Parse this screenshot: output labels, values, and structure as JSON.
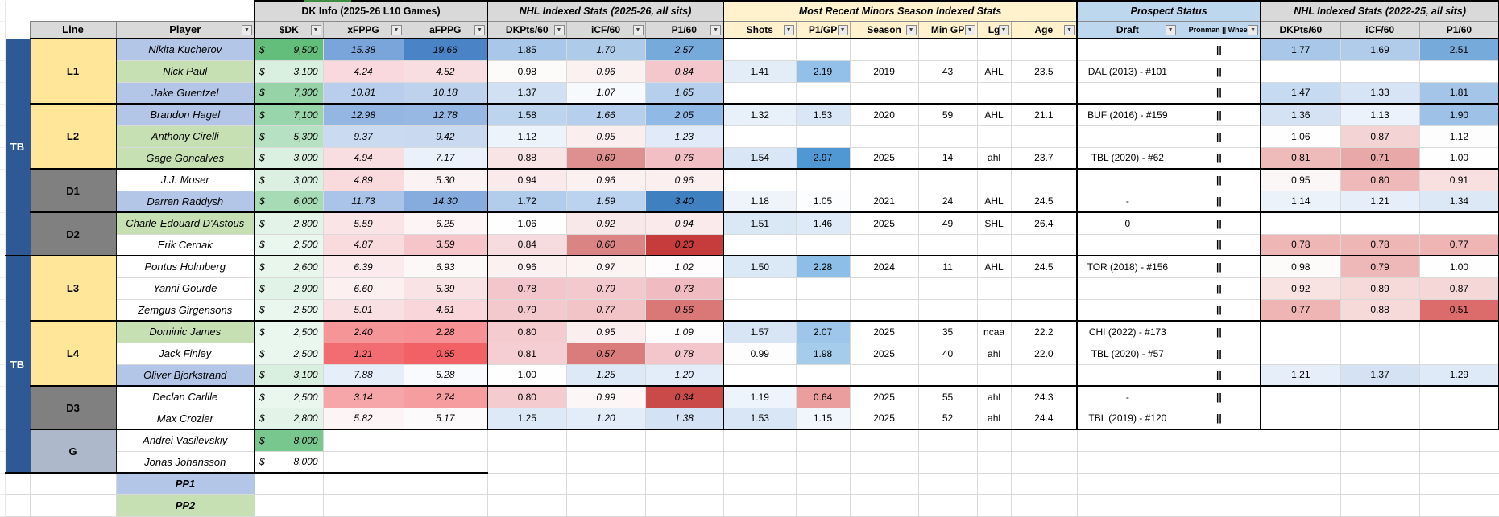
{
  "palette": {
    "band_blue": "#2E5994",
    "line_yellow": "#FFE699",
    "line_gray": "#808080",
    "goalie_slate": "#ADB9CA",
    "player_blue": "#B4C6E7",
    "player_green": "#C6E0B4",
    "header_gray": "#D9D9D9",
    "header_cream": "#FFF2CC",
    "header_blue": "#BDD7EE",
    "dk_green_max": "#63BE7B"
  },
  "header": {
    "line_label": "Line",
    "player_label": "Player",
    "groups": [
      {
        "label": "DK Info (2025-26 L10 Games)",
        "cols": [
          "$DK",
          "xFPPG",
          "aFPPG"
        ]
      },
      {
        "label": "NHL Indexed Stats (2025-26, all sits)",
        "cols": [
          "DKPts/60",
          "iCF/60",
          "P1/60"
        ]
      },
      {
        "label": "Most Recent Minors Season Indexed Stats",
        "cols": [
          "Shots",
          "P1/GP",
          "Season",
          "Min GP",
          "Lg",
          "Age"
        ]
      },
      {
        "label": "Prospect Status",
        "cols": [
          "Draft",
          "Pronman || Wheel"
        ]
      },
      {
        "label": "NHL Indexed Stats (2022-25, all sits)",
        "cols": [
          "DKPts/60",
          "iCF/60",
          "P1/60"
        ]
      }
    ]
  },
  "rows": [
    {
      "band": {
        "label": "TB",
        "span": 10
      },
      "line": {
        "label": "L1",
        "span": 3,
        "bg": "#FFE699"
      },
      "player": "Nikita Kucherov",
      "pbg": "#B4C6E7",
      "dk": {
        "v": "9,500",
        "c": "#63BE7B"
      },
      "vb": "all",
      "stats": [
        {
          "v": "15.38",
          "c": "#79A5DB"
        },
        {
          "v": "19.66",
          "c": "#4A84C6"
        },
        {
          "v": "1.85",
          "c": "#A8C7E9"
        },
        {
          "v": "1.70",
          "c": "#AFCBEA"
        },
        {
          "v": "2.57",
          "c": "#76AADB"
        },
        null,
        null,
        null,
        null,
        null,
        null,
        "",
        "||",
        {
          "v": "1.77",
          "c": "#A9C8E9"
        },
        {
          "v": "1.69",
          "c": "#B0CCEA"
        },
        {
          "v": "2.51",
          "c": "#76AADB"
        }
      ]
    },
    {
      "player": "Nick Paul",
      "pbg": "#C6E0B4",
      "dk": {
        "v": "3,100",
        "c": "#D9EFDF"
      },
      "vb": "all",
      "stats": [
        {
          "v": "4.24",
          "c": "#F9D9DD"
        },
        {
          "v": "4.52",
          "c": "#F9DEE1"
        },
        {
          "v": "0.98",
          "c": "#FDFAFA"
        },
        {
          "v": "0.96",
          "c": "#FBF1F1"
        },
        {
          "v": "0.84",
          "c": "#F3C7CC"
        },
        {
          "v": "1.41",
          "c": "#E2EDF8"
        },
        {
          "v": "2.19",
          "c": "#92C0E8"
        },
        "2019",
        "43",
        "AHL",
        "23.5",
        "DAL (2013) - #101",
        "||",
        null,
        null,
        null
      ]
    },
    {
      "player": "Jake Guentzel",
      "pbg": "#B4C6E7",
      "dk": {
        "v": "7,300",
        "c": "#96D4A8"
      },
      "vb": "all",
      "hb": true,
      "stats": [
        {
          "v": "10.81",
          "c": "#B8CEEC"
        },
        {
          "v": "10.18",
          "c": "#BED2EE"
        },
        {
          "v": "1.37",
          "c": "#D1E1F3"
        },
        {
          "v": "1.07",
          "c": "#F7FAFD"
        },
        {
          "v": "1.65",
          "c": "#B5CFEC"
        },
        null,
        null,
        null,
        null,
        null,
        null,
        "",
        "||",
        {
          "v": "1.47",
          "c": "#C6DAF1"
        },
        {
          "v": "1.33",
          "c": "#D7E4F5"
        },
        {
          "v": "1.81",
          "c": "#A4C5E8"
        }
      ]
    },
    {
      "line": {
        "label": "L2",
        "span": 3,
        "bg": "#FFE699"
      },
      "player": "Brandon Hagel",
      "pbg": "#B4C6E7",
      "dk": {
        "v": "7,100",
        "c": "#99D5AA"
      },
      "vb": "all",
      "stats": [
        {
          "v": "12.98",
          "c": "#94B6E2"
        },
        {
          "v": "12.78",
          "c": "#97B8E3"
        },
        {
          "v": "1.58",
          "c": "#BDD4EF"
        },
        {
          "v": "1.66",
          "c": "#B5CFEC"
        },
        {
          "v": "2.05",
          "c": "#90BAE5"
        },
        {
          "v": "1.32",
          "c": "#E8F0FA"
        },
        {
          "v": "1.53",
          "c": "#D9E6F5"
        },
        "2020",
        "59",
        "AHL",
        "21.1",
        "BUF (2016) - #159",
        "||",
        {
          "v": "1.36",
          "c": "#D4E2F4"
        },
        {
          "v": "1.13",
          "c": "#ECF2FB"
        },
        {
          "v": "1.90",
          "c": "#9EC2E7"
        }
      ]
    },
    {
      "player": "Anthony Cirelli",
      "pbg": "#C6E0B4",
      "dk": {
        "v": "5,300",
        "c": "#B7E1C3"
      },
      "vb": "all",
      "stats": [
        {
          "v": "9.37",
          "c": "#C9DAF1"
        },
        {
          "v": "9.42",
          "c": "#C8D9F0"
        },
        {
          "v": "1.12",
          "c": "#EDF3FB"
        },
        {
          "v": "0.95",
          "c": "#FAEEEE"
        },
        {
          "v": "1.23",
          "c": "#E0EAF8"
        },
        null,
        null,
        null,
        null,
        null,
        null,
        "",
        "||",
        {
          "v": "1.06",
          "c": "#FEFEFE"
        },
        {
          "v": "0.87",
          "c": "#F4D3D5"
        },
        {
          "v": "1.12",
          "c": "#FDFDFE"
        }
      ]
    },
    {
      "player": "Gage Goncalves",
      "pbg": "#C6E0B4",
      "dk": {
        "v": "3,000",
        "c": "#DCF0E2"
      },
      "vb": "all",
      "hb": true,
      "stats": [
        {
          "v": "4.94",
          "c": "#F9DEE1"
        },
        {
          "v": "7.17",
          "c": "#EBF1FA"
        },
        {
          "v": "0.88",
          "c": "#F8E3E5"
        },
        {
          "v": "0.69",
          "c": "#DE9090"
        },
        {
          "v": "0.76",
          "c": "#F1BFC4"
        },
        {
          "v": "1.54",
          "c": "#D8E6F6"
        },
        {
          "v": "2.97",
          "c": "#4F98D3"
        },
        "2025",
        "14",
        "ahl",
        "23.7",
        "TBL (2020) - #62",
        "||",
        {
          "v": "0.81",
          "c": "#EFBABA"
        },
        {
          "v": "0.71",
          "c": "#E9A8A8"
        },
        {
          "v": "1.00",
          "c": "#FEFEFE"
        }
      ]
    },
    {
      "line": {
        "label": "D1",
        "span": 2,
        "bg": "#808080"
      },
      "player": "J.J. Moser",
      "pbg": null,
      "dk": {
        "v": "3,000",
        "c": "#DCF0E2"
      },
      "vb": "all",
      "stats": [
        {
          "v": "4.89",
          "c": "#F9DADD"
        },
        {
          "v": "5.30",
          "c": "#FBF2F3"
        },
        {
          "v": "0.94",
          "c": "#FAEAEB"
        },
        {
          "v": "0.96",
          "c": "#FBF1F1"
        },
        {
          "v": "0.96",
          "c": "#FBEFEF"
        },
        null,
        null,
        null,
        null,
        null,
        null,
        "",
        "||",
        {
          "v": "0.95",
          "c": "#FCF7F7"
        },
        {
          "v": "0.80",
          "c": "#EFB9B9"
        },
        {
          "v": "0.91",
          "c": "#F8E0E0"
        }
      ]
    },
    {
      "player": "Darren Raddysh",
      "pbg": "#B4C6E7",
      "dk": {
        "v": "6,000",
        "c": "#A6DBB5"
      },
      "vb": "all",
      "hb": true,
      "stats": [
        {
          "v": "11.73",
          "c": "#A9C4E8"
        },
        {
          "v": "14.30",
          "c": "#86ACDE"
        },
        {
          "v": "1.72",
          "c": "#B2CDEB"
        },
        {
          "v": "1.59",
          "c": "#BCD3EF"
        },
        {
          "v": "3.40",
          "c": "#3F80C1"
        },
        {
          "v": "1.18",
          "c": "#EFF4FB"
        },
        {
          "v": "1.05",
          "c": "#FCFDFE"
        },
        "2021",
        "24",
        "AHL",
        "24.5",
        "-",
        "||",
        {
          "v": "1.14",
          "c": "#EBF2FA"
        },
        {
          "v": "1.21",
          "c": "#E5EEF9"
        },
        {
          "v": "1.34",
          "c": "#DDE8F7"
        }
      ]
    },
    {
      "line": {
        "label": "D2",
        "span": 2,
        "bg": "#808080"
      },
      "player": "Charle-Edouard D'Astous",
      "pbg": "#C6E0B4",
      "dk": {
        "v": "2,800",
        "c": "#E3F3E8"
      },
      "vb": "all",
      "stats": [
        {
          "v": "5.59",
          "c": "#FAE4E6"
        },
        {
          "v": "6.25",
          "c": "#FCF4F5"
        },
        {
          "v": "1.06",
          "c": "#FEFEFF"
        },
        {
          "v": "0.92",
          "c": "#F9E8E9"
        },
        {
          "v": "0.94",
          "c": "#FAEAEB"
        },
        {
          "v": "1.51",
          "c": "#DAE8F6"
        },
        {
          "v": "1.46",
          "c": "#DFEAF8"
        },
        "2025",
        "49",
        "SHL",
        "26.4",
        "0",
        "||",
        null,
        null,
        null
      ]
    },
    {
      "player": "Erik Cernak",
      "pbg": null,
      "dk": {
        "v": "2,500",
        "c": "#EAF7EE"
      },
      "vb": "all",
      "hb": true,
      "stats": [
        {
          "v": "4.87",
          "c": "#F9DADD"
        },
        {
          "v": "3.59",
          "c": "#F6C5CA"
        },
        {
          "v": "0.84",
          "c": "#F6DCDE"
        },
        {
          "v": "0.60",
          "c": "#DB8484"
        },
        {
          "v": "0.23",
          "c": "#C63B3B"
        },
        null,
        null,
        null,
        null,
        null,
        null,
        "",
        "||",
        {
          "v": "0.78",
          "c": "#EFB6B6"
        },
        {
          "v": "0.78",
          "c": "#EFB6B6"
        },
        {
          "v": "0.77",
          "c": "#EFB5B5"
        }
      ]
    },
    {
      "band": {
        "label": "TB",
        "span": 10
      },
      "line": {
        "label": "L3",
        "span": 3,
        "bg": "#FFE699"
      },
      "player": "Pontus Holmberg",
      "pbg": null,
      "dk": {
        "v": "2,600",
        "c": "#E8F6EC"
      },
      "vb": "all",
      "stats": [
        {
          "v": "6.39",
          "c": "#FBEBEC"
        },
        {
          "v": "6.93",
          "c": "#FDF8F8"
        },
        {
          "v": "0.96",
          "c": "#FBF1F1"
        },
        {
          "v": "0.97",
          "c": "#FCF3F3"
        },
        {
          "v": "1.02",
          "c": "#FEFCFD"
        },
        {
          "v": "1.50",
          "c": "#DBE8F6"
        },
        {
          "v": "2.28",
          "c": "#8CBEE7"
        },
        "2024",
        "11",
        "AHL",
        "24.5",
        "TOR (2018) - #156",
        "||",
        {
          "v": "0.98",
          "c": "#FDFAFA"
        },
        {
          "v": "0.79",
          "c": "#EFB8B8"
        },
        {
          "v": "1.00",
          "c": "#FEFEFE"
        }
      ]
    },
    {
      "player": "Yanni Gourde",
      "pbg": null,
      "dk": {
        "v": "2,900",
        "c": "#E1F2E6"
      },
      "vb": "all",
      "stats": [
        {
          "v": "6.60",
          "c": "#FCF0F1"
        },
        {
          "v": "5.39",
          "c": "#FAE3E5"
        },
        {
          "v": "0.78",
          "c": "#F2C6CA"
        },
        {
          "v": "0.79",
          "c": "#F3C9CD"
        },
        {
          "v": "0.73",
          "c": "#F0BCC1"
        },
        null,
        null,
        null,
        null,
        null,
        null,
        "",
        "||",
        {
          "v": "0.92",
          "c": "#F8E2E2"
        },
        {
          "v": "0.89",
          "c": "#F6DADA"
        },
        {
          "v": "0.87",
          "c": "#F5D7D7"
        }
      ]
    },
    {
      "player": "Zemgus Girgensons",
      "pbg": null,
      "dk": {
        "v": "2,500",
        "c": "#EAF7EE"
      },
      "vb": "all",
      "hb": true,
      "stats": [
        {
          "v": "5.01",
          "c": "#F9E1E3"
        },
        {
          "v": "4.61",
          "c": "#F8D6DA"
        },
        {
          "v": "0.79",
          "c": "#F3C9CD"
        },
        {
          "v": "0.77",
          "c": "#F2C3C7"
        },
        {
          "v": "0.56",
          "c": "#DA7878"
        },
        null,
        null,
        null,
        null,
        null,
        null,
        "",
        "||",
        {
          "v": "0.77",
          "c": "#EFB5B5"
        },
        {
          "v": "0.88",
          "c": "#F6D9D9"
        },
        {
          "v": "0.51",
          "c": "#DC6C6C"
        }
      ]
    },
    {
      "line": {
        "label": "L4",
        "span": 3,
        "bg": "#FFE699"
      },
      "player": "Dominic James",
      "pbg": "#C6E0B4",
      "dk": {
        "v": "2,500",
        "c": "#EAF7EE"
      },
      "vb": "all",
      "stats": [
        {
          "v": "2.40",
          "c": "#F69598"
        },
        {
          "v": "2.28",
          "c": "#F69295"
        },
        {
          "v": "0.80",
          "c": "#F4CCD0"
        },
        {
          "v": "0.95",
          "c": "#FAEEEE"
        },
        {
          "v": "1.09",
          "c": "#FDFDFE"
        },
        {
          "v": "1.57",
          "c": "#D7E5F5"
        },
        {
          "v": "2.07",
          "c": "#9DC6EA"
        },
        "2025",
        "35",
        "ncaa",
        "22.2",
        "CHI (2022) - #173",
        "||",
        null,
        null,
        null
      ]
    },
    {
      "player": "Jack Finley",
      "pbg": null,
      "dk": {
        "v": "2,500",
        "c": "#EAF7EE"
      },
      "vb": "all",
      "stats": [
        {
          "v": "1.21",
          "c": "#F26D71"
        },
        {
          "v": "0.65",
          "c": "#F16165"
        },
        {
          "v": "0.81",
          "c": "#F4CED2"
        },
        {
          "v": "0.57",
          "c": "#DA7C7C"
        },
        {
          "v": "0.78",
          "c": "#F2C6CA"
        },
        {
          "v": "0.99",
          "c": "#FEFDFD"
        },
        {
          "v": "1.98",
          "c": "#A6CCEC"
        },
        "2025",
        "40",
        "ahl",
        "22.0",
        "TBL (2020) - #57",
        "||",
        null,
        null,
        null
      ]
    },
    {
      "player": "Oliver Bjorkstrand",
      "pbg": "#B4C6E7",
      "dk": {
        "v": "3,100",
        "c": "#D9EFDF"
      },
      "vb": "all",
      "hb": true,
      "stats": [
        {
          "v": "7.88",
          "c": "#E6EEF9"
        },
        {
          "v": "5.28",
          "c": "#F8FAFD"
        },
        {
          "v": "1.00",
          "c": "#FEFEFE"
        },
        {
          "v": "1.25",
          "c": "#DEE9F7"
        },
        {
          "v": "1.20",
          "c": "#E3ECF9"
        },
        null,
        null,
        null,
        null,
        null,
        null,
        "",
        "||",
        {
          "v": "1.21",
          "c": "#E5EEF9"
        },
        {
          "v": "1.37",
          "c": "#D4E2F4"
        },
        {
          "v": "1.29",
          "c": "#DFEAF8"
        }
      ]
    },
    {
      "line": {
        "label": "D3",
        "span": 2,
        "bg": "#808080"
      },
      "player": "Declan Carlile",
      "pbg": null,
      "dk": {
        "v": "2,500",
        "c": "#EAF7EE"
      },
      "vb": "all",
      "stats": [
        {
          "v": "3.14",
          "c": "#F6A5A8"
        },
        {
          "v": "2.74",
          "c": "#F69DA0"
        },
        {
          "v": "0.80",
          "c": "#F4CCD0"
        },
        {
          "v": "0.99",
          "c": "#FCF6F6"
        },
        {
          "v": "0.34",
          "c": "#CA4A4A"
        },
        {
          "v": "1.19",
          "c": "#EEF4FB"
        },
        {
          "v": "0.64",
          "c": "#EA9E9E"
        },
        "2025",
        "55",
        "ahl",
        "24.3",
        "-",
        "||",
        null,
        null,
        null
      ]
    },
    {
      "player": "Max Crozier",
      "pbg": null,
      "dk": {
        "v": "2,800",
        "c": "#E3F3E8"
      },
      "vb": "all",
      "hb": true,
      "stats": [
        {
          "v": "5.82",
          "c": "#FCF4F5"
        },
        {
          "v": "5.17",
          "c": "#FCFAFB"
        },
        {
          "v": "1.25",
          "c": "#DEE9F7"
        },
        {
          "v": "1.20",
          "c": "#E3ECF9"
        },
        {
          "v": "1.38",
          "c": "#D3E2F4"
        },
        {
          "v": "1.53",
          "c": "#D9E6F5"
        },
        {
          "v": "1.15",
          "c": "#F1F6FC"
        },
        "2025",
        "52",
        "ahl",
        "24.4",
        "TBL (2019) - #120",
        "||",
        null,
        null,
        null
      ]
    },
    {
      "line": {
        "label": "G",
        "span": 2,
        "bg": "#ADB9CA"
      },
      "player": "Andrei Vasilevskiy",
      "pbg": null,
      "dk": {
        "v": "8,000",
        "c": "#77C78F"
      },
      "vb": "left",
      "stats": [
        null,
        null,
        null,
        null,
        null,
        null,
        null,
        null,
        null,
        null,
        null,
        null,
        null,
        null,
        null,
        null
      ]
    },
    {
      "player": "Jonas Johansson",
      "pbg": null,
      "dk": {
        "v": "8,000",
        "c": null
      },
      "vb": "left",
      "hb": "left",
      "stats": [
        null,
        null,
        null,
        null,
        null,
        null,
        null,
        null,
        null,
        null,
        null,
        null,
        null,
        null,
        null,
        null
      ]
    },
    {
      "band_empty": true,
      "line_empty": true,
      "player": "PP1",
      "pp": true,
      "pbg": "#B4C6E7",
      "dk": null,
      "vb": "none",
      "stats": [
        null,
        null,
        null,
        null,
        null,
        null,
        null,
        null,
        null,
        null,
        null,
        null,
        null,
        null,
        null,
        null
      ]
    },
    {
      "band_empty": true,
      "line_empty": true,
      "player": "PP2",
      "pp": true,
      "pbg": "#C6E0B4",
      "dk": null,
      "vb": "none",
      "stats": [
        null,
        null,
        null,
        null,
        null,
        null,
        null,
        null,
        null,
        null,
        null,
        null,
        null,
        null,
        null,
        null
      ]
    }
  ]
}
